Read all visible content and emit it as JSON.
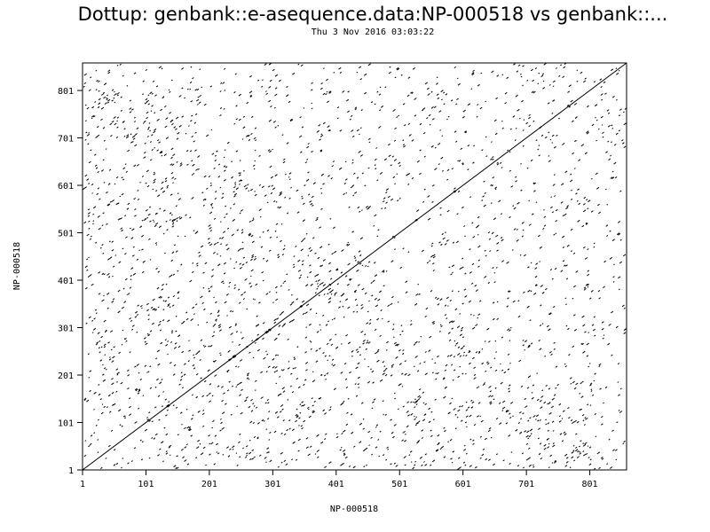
{
  "chart_data": {
    "type": "scatter",
    "title": "Dottup: genbank::e-asequence.data:NP-000518 vs genbank::...",
    "subtitle": "Thu  3 Nov 2016 03:03:22",
    "xlabel": "NP-000518",
    "ylabel": "NP-000518",
    "xlim": [
      1,
      859
    ],
    "ylim": [
      1,
      859
    ],
    "x_ticks": [
      1,
      101,
      201,
      301,
      401,
      501,
      601,
      701,
      801
    ],
    "y_ticks": [
      1,
      101,
      201,
      301,
      401,
      501,
      601,
      701,
      801
    ],
    "grid": false,
    "legend": "none",
    "series": [
      {
        "values": [
          [
            1,
            1
          ],
          [
            859,
            859
          ]
        ]
      }
    ],
    "noise_description": "",
    "colors": {
      "ink": "#000000",
      "background": "#ffffff"
    }
  }
}
